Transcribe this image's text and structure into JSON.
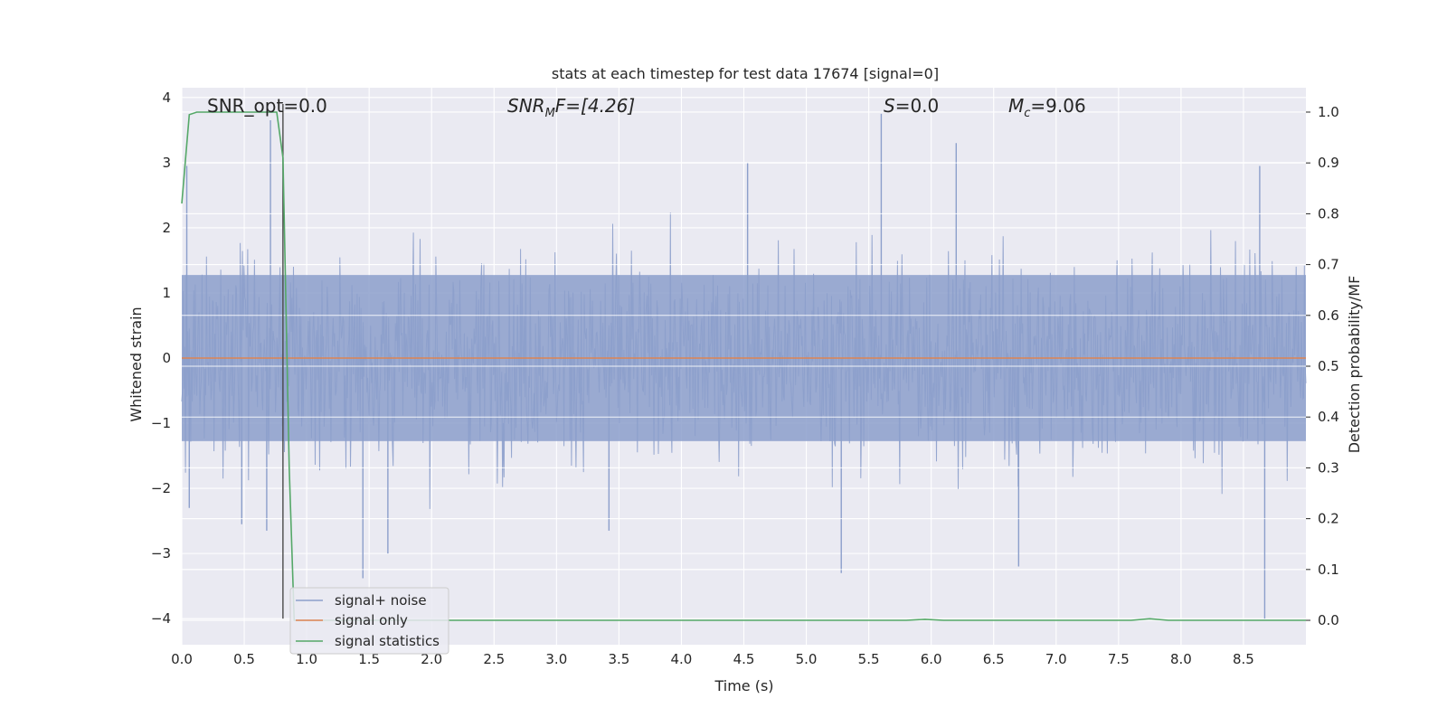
{
  "chart_data": {
    "type": "line",
    "title": "stats at each timestep for test data 17674 [signal=0]",
    "xlabel": "Time (s)",
    "ylabel_left": "Whitened strain",
    "ylabel_right": "Detection probability/MF",
    "xlim": [
      0.0,
      9.0
    ],
    "ylim_left": [
      -4.4,
      4.15
    ],
    "ylim_right": [
      -0.048,
      1.048
    ],
    "x_ticks": [
      "0.0",
      "0.5",
      "1.0",
      "1.5",
      "2.0",
      "2.5",
      "3.0",
      "3.5",
      "4.0",
      "4.5",
      "5.0",
      "5.5",
      "6.0",
      "6.5",
      "7.0",
      "7.5",
      "8.0",
      "8.5"
    ],
    "y_ticks_left": [
      "4",
      "3",
      "2",
      "1",
      "0",
      "−1",
      "−2",
      "−3",
      "−4"
    ],
    "y_ticks_right": [
      "1.0",
      "0.9",
      "0.8",
      "0.7",
      "0.6",
      "0.5",
      "0.4",
      "0.3",
      "0.2",
      "0.1",
      "0.0"
    ],
    "grid": true,
    "legend_position": "lower-left",
    "annotations": {
      "snr_opt": "SNR_opt=0.0",
      "snr_mf_prefix": "SNR",
      "snr_mf_sub": "M",
      "snr_mf_suffix": "F=[4.26]",
      "s_prefix": "S",
      "s_suffix": "=0.0",
      "mc_prefix": "M",
      "mc_sub": "c",
      "mc_suffix": "=9.06"
    },
    "vertical_marker_x": 0.81,
    "colors": {
      "noise": "#8c9fcb",
      "signal": "#dd8452",
      "stat": "#55a868",
      "background": "#eaeaf2",
      "marker": "#4a4a4a"
    },
    "series": [
      {
        "name": "signal+ noise",
        "description_level": "whitened strain fluctuating mostly within ±2 with spikes",
        "envelope_typical": [
          -1.7,
          1.7
        ],
        "spikes": [
          {
            "x": 0.04,
            "y": 2.95
          },
          {
            "x": 0.06,
            "y": -2.3
          },
          {
            "x": 0.48,
            "y": -2.55
          },
          {
            "x": 0.71,
            "y": 3.65
          },
          {
            "x": 0.68,
            "y": -2.65
          },
          {
            "x": 1.45,
            "y": -3.38
          },
          {
            "x": 1.65,
            "y": -3.0
          },
          {
            "x": 3.42,
            "y": -2.65
          },
          {
            "x": 4.53,
            "y": 3.0
          },
          {
            "x": 5.28,
            "y": -3.3
          },
          {
            "x": 5.6,
            "y": 3.75
          },
          {
            "x": 6.2,
            "y": 3.3
          },
          {
            "x": 6.7,
            "y": -3.2
          },
          {
            "x": 8.63,
            "y": 2.95
          },
          {
            "x": 8.67,
            "y": -4.0
          }
        ]
      },
      {
        "name": "signal only",
        "x": [
          0.0,
          9.0
        ],
        "y": [
          0.0,
          0.0
        ]
      },
      {
        "name": "signal statistics",
        "x": [
          0.0,
          0.06,
          0.12,
          0.2,
          0.3,
          0.4,
          0.5,
          0.6,
          0.7,
          0.76,
          0.81,
          0.86,
          0.9,
          1.0,
          2.0,
          3.0,
          4.0,
          5.0,
          5.8,
          5.95,
          6.1,
          7.0,
          7.6,
          7.75,
          7.9,
          8.5,
          9.0
        ],
        "y": [
          0.82,
          0.995,
          1.0,
          1.0,
          1.0,
          1.0,
          1.0,
          1.0,
          1.0,
          1.0,
          0.91,
          0.3,
          0.0,
          0.0,
          0.0,
          0.0,
          0.0,
          0.0,
          0.0,
          0.002,
          0.0,
          0.0,
          0.0,
          0.003,
          0.0,
          0.0,
          0.0
        ]
      }
    ]
  }
}
